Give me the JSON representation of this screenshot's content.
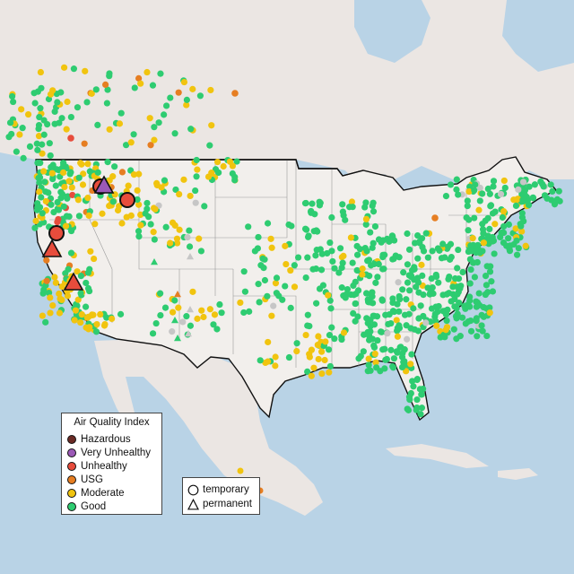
{
  "legend": {
    "title": "Air Quality Index",
    "items": [
      {
        "key": "hazardous",
        "label": "Hazardous",
        "color": "#6b2b25"
      },
      {
        "key": "very_unhealthy",
        "label": "Very Unhealthy",
        "color": "#9b59b6"
      },
      {
        "key": "unhealthy",
        "label": "Unhealthy",
        "color": "#e74c3c"
      },
      {
        "key": "usg",
        "label": "USG",
        "color": "#e67e22"
      },
      {
        "key": "moderate",
        "label": "Moderate",
        "color": "#f1c40f"
      },
      {
        "key": "good",
        "label": "Good",
        "color": "#2ecc71"
      }
    ]
  },
  "monitor_types": {
    "temporary_label": "temporary",
    "permanent_label": "permanent"
  },
  "colors": {
    "water": "#b9d3e6",
    "land": "#ece6e2",
    "us_land": "#f2efec",
    "no_data": "#c6c6c6"
  }
}
